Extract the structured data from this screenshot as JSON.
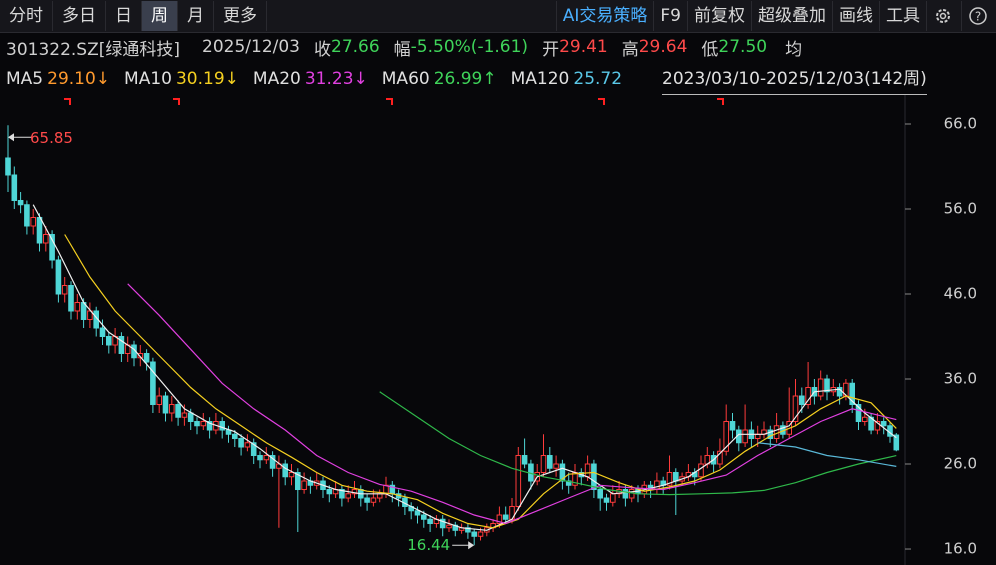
{
  "toolbar": {
    "periods": [
      "分时",
      "多日",
      "日",
      "周",
      "月",
      "更多"
    ],
    "selected": 3,
    "tools": [
      "AI交易策略",
      "F9",
      "前复权",
      "超级叠加",
      "画线",
      "工具"
    ]
  },
  "info": {
    "code": "301322.SZ[绿通科技]",
    "date": "2025/12/03",
    "close_label": "收",
    "close": "27.66",
    "change_label": "幅",
    "change": "-5.50%(-1.61)",
    "open_label": "开",
    "open": "29.41",
    "high_label": "高",
    "high": "29.64",
    "low_label": "低",
    "low": "27.50",
    "avg_label": "均"
  },
  "chart_data": {
    "type": "candlestick",
    "range_label": "2023/03/10-2025/12/03(142周)",
    "ylim": [
      14.12,
      69.41
    ],
    "yticks": [
      {
        "value": 66,
        "label": "66.0"
      },
      {
        "value": 56,
        "label": "56.0"
      },
      {
        "value": 46,
        "label": "46.0"
      },
      {
        "value": 36,
        "label": "36.0"
      },
      {
        "value": 26,
        "label": "26.0"
      },
      {
        "value": 16,
        "label": "16.0"
      }
    ],
    "grid": false,
    "up_color": "#ff3b3b",
    "down_color": "#4fd6d6",
    "max_label": "65.85",
    "max_index": 0,
    "min_label": "16.44",
    "min_index": 74,
    "candles": [
      [
        62,
        65.85,
        58,
        60
      ],
      [
        60,
        61,
        56,
        57
      ],
      [
        57,
        58,
        55.5,
        56.5
      ],
      [
        56.5,
        57,
        53,
        54
      ],
      [
        54,
        56,
        53,
        55
      ],
      [
        55,
        55.5,
        51,
        52
      ],
      [
        52,
        54,
        51,
        53
      ],
      [
        53,
        53.5,
        49,
        50
      ],
      [
        50,
        50.5,
        45,
        46
      ],
      [
        46,
        48,
        45,
        47
      ],
      [
        47,
        47.5,
        43,
        44
      ],
      [
        44,
        46,
        43,
        45
      ],
      [
        45,
        45.5,
        42,
        43
      ],
      [
        43,
        45,
        42,
        44
      ],
      [
        44,
        44.5,
        41,
        42
      ],
      [
        42,
        43,
        40,
        41
      ],
      [
        41,
        41.5,
        39,
        40
      ],
      [
        40,
        42,
        39,
        41
      ],
      [
        41,
        41.5,
        38,
        39
      ],
      [
        39,
        41,
        38,
        40
      ],
      [
        40,
        40.5,
        37.5,
        38.5
      ],
      [
        38.5,
        40,
        37.5,
        39
      ],
      [
        39,
        39.5,
        37,
        38
      ],
      [
        38,
        38.5,
        32,
        33
      ],
      [
        33,
        35,
        32,
        34
      ],
      [
        34,
        34.5,
        31,
        32
      ],
      [
        32,
        34,
        31,
        33
      ],
      [
        33,
        33.5,
        30.5,
        31.5
      ],
      [
        31.5,
        33,
        30.5,
        32
      ],
      [
        32,
        32.5,
        30,
        31
      ],
      [
        31,
        31.5,
        29.5,
        30.5
      ],
      [
        30.5,
        32,
        30,
        31
      ],
      [
        31,
        31.5,
        29,
        30
      ],
      [
        30,
        32,
        29.5,
        31
      ],
      [
        31,
        31.5,
        29,
        30
      ],
      [
        30,
        30.5,
        28.5,
        29.5
      ],
      [
        29.5,
        30,
        28,
        29
      ],
      [
        29,
        29.5,
        27,
        28
      ],
      [
        28,
        29.5,
        27.5,
        28.5
      ],
      [
        28.5,
        29,
        26,
        27
      ],
      [
        27,
        27.5,
        25.5,
        26.5
      ],
      [
        26.5,
        28,
        26,
        27
      ],
      [
        27,
        27.5,
        24.5,
        25.5
      ],
      [
        25.5,
        27,
        18.5,
        26
      ],
      [
        26,
        26.5,
        23.5,
        24.5
      ],
      [
        24.5,
        26,
        23.5,
        25
      ],
      [
        25,
        25.5,
        18,
        23
      ],
      [
        23,
        25,
        22.5,
        24
      ],
      [
        24,
        24.5,
        22.5,
        23.5
      ],
      [
        23.5,
        25,
        23,
        24
      ],
      [
        24,
        24.5,
        22,
        23
      ],
      [
        23,
        23.5,
        21.5,
        22.5
      ],
      [
        22.5,
        24,
        22,
        23
      ],
      [
        23,
        23.5,
        21,
        22
      ],
      [
        22,
        23.5,
        21.5,
        22.5
      ],
      [
        22.5,
        24,
        22,
        23
      ],
      [
        23,
        23.5,
        21,
        22
      ],
      [
        22,
        22.5,
        20.5,
        21.5
      ],
      [
        21.5,
        23,
        21,
        22
      ],
      [
        22,
        23,
        21.5,
        22.5
      ],
      [
        22.5,
        24.5,
        22,
        23.5
      ],
      [
        23.5,
        24,
        21.5,
        22.5
      ],
      [
        22.5,
        23,
        21,
        22
      ],
      [
        22,
        22.5,
        20,
        21
      ],
      [
        21,
        21.5,
        19.5,
        20.5
      ],
      [
        20.5,
        21,
        19,
        20
      ],
      [
        20,
        20.5,
        18.5,
        19.5
      ],
      [
        19.5,
        20,
        18,
        19
      ],
      [
        19,
        20,
        18.5,
        19.5
      ],
      [
        19.5,
        20,
        17.5,
        18.5
      ],
      [
        18.5,
        19.5,
        18,
        18.8
      ],
      [
        18.8,
        19.2,
        17.5,
        18.2
      ],
      [
        18.2,
        19,
        17.8,
        18.5
      ],
      [
        18.5,
        19,
        17.2,
        18
      ],
      [
        18,
        18.3,
        16.44,
        17.5
      ],
      [
        17.5,
        18.5,
        17,
        18
      ],
      [
        18,
        19,
        17.5,
        18.5
      ],
      [
        18.5,
        19.5,
        18,
        19
      ],
      [
        19,
        21,
        18.5,
        20
      ],
      [
        20,
        21,
        19,
        19.5
      ],
      [
        19.5,
        22,
        19,
        21
      ],
      [
        21,
        28,
        20.5,
        27
      ],
      [
        27,
        29,
        25.5,
        26
      ],
      [
        26,
        26.5,
        23,
        24
      ],
      [
        24,
        26,
        23.5,
        25
      ],
      [
        25,
        29.5,
        24.5,
        27
      ],
      [
        27,
        28,
        25,
        25.5
      ],
      [
        25.5,
        27,
        24.5,
        26
      ],
      [
        26,
        26.5,
        23,
        24
      ],
      [
        24,
        25,
        22.5,
        23.5
      ],
      [
        23.5,
        26,
        23,
        25
      ],
      [
        25,
        25.5,
        23.5,
        24.5
      ],
      [
        24.5,
        27,
        24,
        26
      ],
      [
        26,
        26.5,
        22,
        23
      ],
      [
        23,
        23.5,
        20.5,
        22
      ],
      [
        22,
        22.5,
        20.5,
        21.5
      ],
      [
        21.5,
        23.5,
        21,
        22.5
      ],
      [
        22.5,
        24,
        22,
        23
      ],
      [
        23,
        23.5,
        21,
        22
      ],
      [
        22,
        23.5,
        21.5,
        23
      ],
      [
        23,
        23.5,
        21.5,
        22.5
      ],
      [
        22.5,
        24,
        22,
        23.5
      ],
      [
        23.5,
        24,
        22,
        23
      ],
      [
        23,
        25,
        22.5,
        24
      ],
      [
        24,
        24.5,
        22.5,
        23.5
      ],
      [
        23.5,
        27,
        23,
        25
      ],
      [
        25,
        25.5,
        20,
        24
      ],
      [
        24,
        25,
        23.5,
        24.5
      ],
      [
        24.5,
        26,
        24,
        25
      ],
      [
        25,
        25.5,
        23.5,
        24.5
      ],
      [
        24.5,
        27,
        24,
        26
      ],
      [
        26,
        28,
        25.5,
        27
      ],
      [
        27,
        27.5,
        25,
        26
      ],
      [
        26,
        29,
        25.5,
        27.5
      ],
      [
        27.5,
        33,
        27,
        31
      ],
      [
        31,
        32,
        29,
        30
      ],
      [
        30,
        30.5,
        27.5,
        28.5
      ],
      [
        28.5,
        33,
        28,
        30
      ],
      [
        30,
        31,
        28,
        29
      ],
      [
        29,
        30.5,
        28,
        29.5
      ],
      [
        29.5,
        31,
        29,
        30
      ],
      [
        30,
        30.5,
        28,
        29
      ],
      [
        29,
        32,
        28.5,
        30.5
      ],
      [
        30.5,
        31,
        29,
        29.5
      ],
      [
        29.5,
        35,
        29,
        31
      ],
      [
        31,
        36,
        30.5,
        34
      ],
      [
        34,
        35,
        32,
        33
      ],
      [
        33,
        38,
        32.5,
        35
      ],
      [
        35,
        36,
        33,
        34
      ],
      [
        34,
        37,
        33.5,
        36
      ],
      [
        36,
        36.5,
        33.5,
        34.5
      ],
      [
        34.5,
        36,
        34,
        35
      ],
      [
        35,
        35.5,
        33,
        34
      ],
      [
        34,
        36,
        33.5,
        35.5
      ],
      [
        35.5,
        36,
        32,
        33
      ],
      [
        33,
        33.5,
        30,
        31
      ],
      [
        31,
        32.5,
        30.5,
        31.5
      ],
      [
        31.5,
        32,
        29.5,
        30
      ],
      [
        30,
        32,
        29.5,
        31
      ],
      [
        31,
        31.5,
        29.5,
        30.5
      ],
      [
        30.5,
        31,
        28.5,
        29.27
      ],
      [
        29.41,
        29.64,
        27.5,
        27.66
      ]
    ],
    "series": [
      {
        "name": "MA5",
        "label": "29.10↓",
        "color": "#f0f0f0",
        "label_color": "#ff9a2e",
        "x": [
          4,
          8,
          12,
          16,
          20,
          24,
          28,
          32,
          36,
          40,
          44,
          48,
          52,
          56,
          60,
          64,
          68,
          72,
          76,
          80,
          84,
          88,
          92,
          96,
          100,
          104,
          108,
          112,
          116,
          120,
          124,
          128,
          132,
          136,
          141
        ],
        "values": [
          56.5,
          51,
          45,
          41.5,
          39.5,
          36,
          32.5,
          30.8,
          29.8,
          27.8,
          25.5,
          24,
          23,
          22.5,
          22.5,
          21,
          19.5,
          18.5,
          18.2,
          19.5,
          24.5,
          25.5,
          24.5,
          22.5,
          22.8,
          23.5,
          24.5,
          26.5,
          29.5,
          29.5,
          30.5,
          34.5,
          34.8,
          32,
          29.1
        ]
      },
      {
        "name": "MA10",
        "label": "30.19↓",
        "color": "#f5d020",
        "label_color": "#f5d020",
        "x": [
          9,
          13,
          17,
          21,
          25,
          29,
          33,
          37,
          41,
          45,
          49,
          53,
          57,
          61,
          65,
          69,
          73,
          77,
          81,
          85,
          89,
          93,
          97,
          101,
          105,
          109,
          113,
          117,
          121,
          125,
          129,
          133,
          137,
          141
        ],
        "values": [
          53,
          48,
          44,
          41,
          38,
          35,
          32.5,
          30.5,
          28.5,
          26.8,
          25,
          23.5,
          22.8,
          22.5,
          21.8,
          20.2,
          19,
          18.5,
          19.5,
          22.5,
          24.8,
          25,
          23.8,
          22.8,
          23.3,
          24,
          25.3,
          27.5,
          29.3,
          30.5,
          32.5,
          34,
          33.2,
          30.19
        ]
      },
      {
        "name": "MA20",
        "label": "31.23↓",
        "color": "#e040e0",
        "label_color": "#e040e0",
        "x": [
          19,
          24,
          29,
          34,
          39,
          44,
          49,
          54,
          59,
          64,
          69,
          74,
          79,
          84,
          89,
          94,
          99,
          104,
          109,
          114,
          119,
          124,
          129,
          134,
          141
        ],
        "values": [
          47.2,
          43.5,
          39.5,
          35.5,
          32.5,
          30,
          27,
          25,
          23.6,
          22.8,
          21.5,
          20,
          19,
          20.5,
          22,
          23.5,
          23.2,
          23,
          23.8,
          24.7,
          27,
          29,
          31,
          32.5,
          31.23
        ]
      },
      {
        "name": "MA60",
        "label": "26.99↑",
        "color": "#2fb84a",
        "label_color": "#3fd45a",
        "x": [
          59,
          65,
          70,
          75,
          80,
          85,
          90,
          95,
          100,
          105,
          110,
          115,
          120,
          125,
          130,
          135,
          141
        ],
        "values": [
          34.5,
          31.5,
          29,
          27,
          25.5,
          24.5,
          23.8,
          23,
          22.5,
          22.4,
          22.5,
          22.6,
          22.9,
          23.8,
          25,
          26,
          26.99
        ]
      },
      {
        "name": "MA120",
        "label": "25.72",
        "color": "#5ab8d8",
        "label_color": "#5ac8e8",
        "x": [
          119,
          125,
          130,
          135,
          141
        ],
        "values": [
          28.5,
          28,
          27,
          26.5,
          25.72
        ]
      }
    ]
  }
}
